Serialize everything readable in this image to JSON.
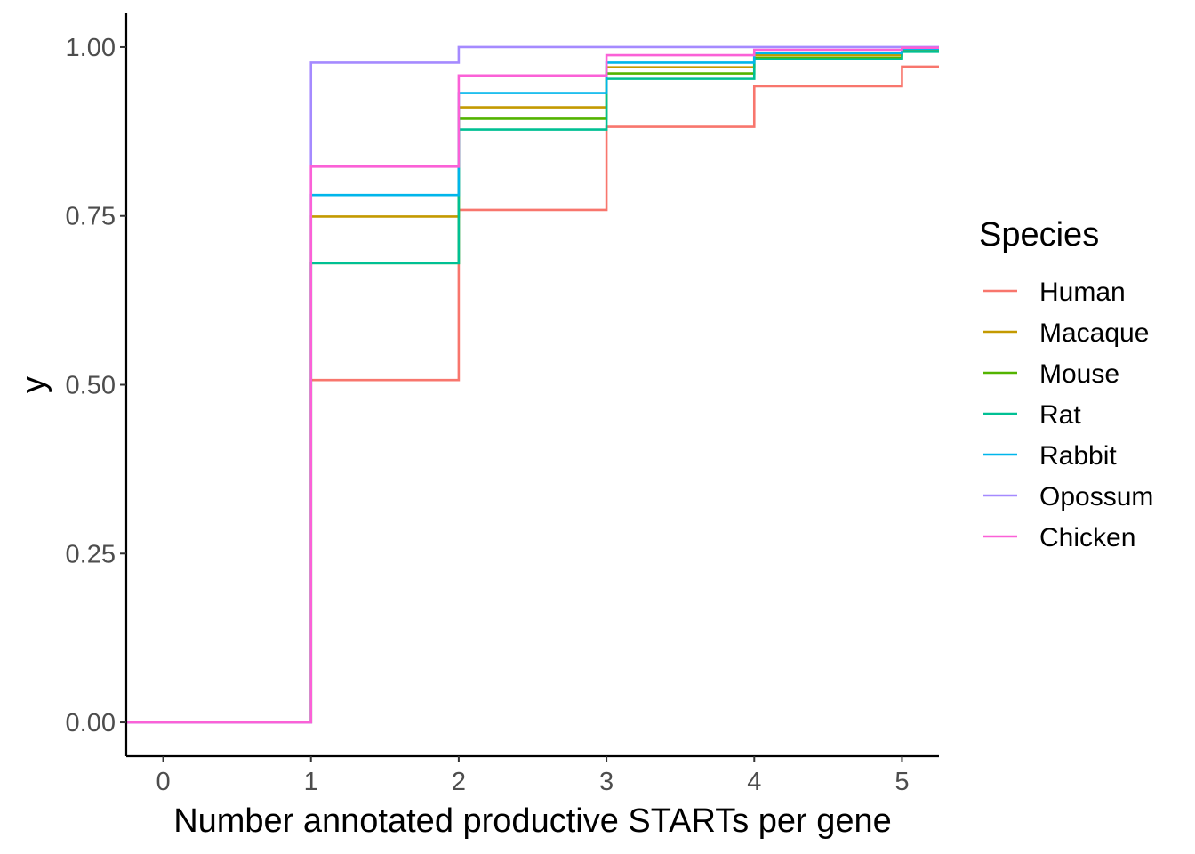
{
  "chart_data": {
    "type": "line",
    "step": true,
    "title": "",
    "xlabel": "Number annotated productive STARTs per gene",
    "ylabel": "y",
    "xlim": [
      -0.25,
      5.25
    ],
    "ylim": [
      -0.05,
      1.05
    ],
    "x_ticks": [
      0,
      1,
      2,
      3,
      4,
      5
    ],
    "x_tick_labels": [
      "0",
      "1",
      "2",
      "3",
      "4",
      "5"
    ],
    "y_ticks": [
      0,
      0.25,
      0.5,
      0.75,
      1.0
    ],
    "y_tick_labels": [
      "0.00",
      "0.25",
      "0.50",
      "0.75",
      "1.00"
    ],
    "grid": false,
    "legend": {
      "title": "Species",
      "position": "right"
    },
    "x": [
      0,
      1,
      2,
      3,
      4,
      5
    ],
    "series": [
      {
        "name": "Human",
        "color": "#F8766D",
        "values": [
          0,
          0.507,
          0.759,
          0.882,
          0.942,
          0.971
        ]
      },
      {
        "name": "Macaque",
        "color": "#C49A00",
        "values": [
          0,
          0.749,
          0.911,
          0.97,
          0.988,
          0.996
        ]
      },
      {
        "name": "Mouse",
        "color": "#53B400",
        "values": [
          0,
          0.68,
          0.894,
          0.961,
          0.984,
          0.994
        ]
      },
      {
        "name": "Rat",
        "color": "#00C094",
        "values": [
          0,
          0.68,
          0.878,
          0.953,
          0.982,
          0.993
        ]
      },
      {
        "name": "Rabbit",
        "color": "#00B6EB",
        "values": [
          0,
          0.781,
          0.932,
          0.977,
          0.991,
          0.997
        ]
      },
      {
        "name": "Opossum",
        "color": "#A58AFF",
        "values": [
          0,
          0.977,
          1.0,
          1.0,
          1.0,
          1.0
        ]
      },
      {
        "name": "Chicken",
        "color": "#FB61D7",
        "values": [
          0,
          0.823,
          0.958,
          0.988,
          0.996,
          0.999
        ]
      }
    ]
  }
}
